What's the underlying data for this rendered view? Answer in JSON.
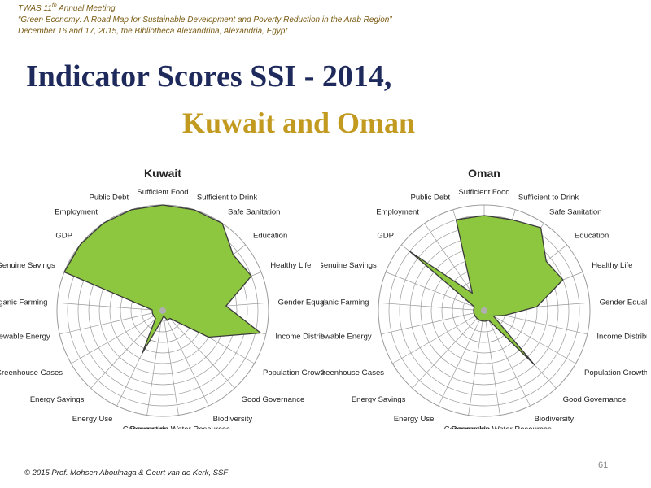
{
  "header": {
    "line1_prefix": "TWAS 11",
    "line1_sup": "th",
    "line1_suffix": " Annual Meeting",
    "line2": "“Green Economy: A Road Map for Sustainable Development and Poverty Reduction in the Arab Region”",
    "line3": "December 16 and 17, 2015,  the Bibliotheca Alexandrina, Alexandria, Egypt"
  },
  "title": {
    "main": "Indicator Scores SSI - 2014,",
    "sub": "Kuwait and Oman"
  },
  "footer": {
    "copyright": "© 2015 Prof.  Mohsen Aboulnaga & Geurt van de Kerk, SSF",
    "page_number": "61"
  },
  "colors": {
    "fill": "#8dc63f",
    "stroke": "#3b3b3b",
    "grid": "#9a9a9a",
    "title_main": "#1f2a5c",
    "title_sub": "#c19a1f"
  },
  "chart_data": [
    {
      "type": "radar",
      "title": "Kuwait",
      "range": [
        0,
        10
      ],
      "rings": 10,
      "grid": true,
      "categories": [
        "Sufficient Food",
        "Sufficient to Drink",
        "Safe Sanitation",
        "Education",
        "Healthy Life",
        "Gender Equality",
        "Income Distribution",
        "Population Growth",
        "Good Governance",
        "Biodiversity",
        "Renewable Water Resources",
        "Consumption",
        "Energy Use",
        "Energy Savings",
        "Greenhouse Gases",
        "Renewable Energy",
        "Organic Farming",
        "Genuine Savings",
        "GDP",
        "Employment",
        "Public Debt"
      ],
      "values": [
        10,
        10,
        10,
        8.5,
        9,
        6,
        9.5,
        5,
        1,
        1,
        0.5,
        1,
        4.5,
        1,
        1,
        1,
        1,
        10,
        10,
        10,
        10
      ]
    },
    {
      "type": "radar",
      "title": "Oman",
      "range": [
        0,
        10
      ],
      "rings": 10,
      "grid": true,
      "categories": [
        "Sufficient Food",
        "Sufficient to Drink",
        "Safe Sanitation",
        "Education",
        "Healthy Life",
        "Gender Equality",
        "Income Distribution",
        "Population Growth",
        "Good Governance",
        "Biodiversity",
        "Renewable Water Resources",
        "Consumption",
        "Energy Use",
        "Energy Savings",
        "Greenhouse Gases",
        "Renewable Energy",
        "Organic Farming",
        "Genuine Savings",
        "GDP",
        "Employment",
        "Public Debt"
      ],
      "values": [
        9,
        9,
        9.5,
        7.5,
        8,
        5,
        2,
        1,
        7,
        1,
        1,
        1,
        1,
        1,
        1,
        1,
        1,
        1,
        9,
        2,
        9
      ]
    }
  ]
}
